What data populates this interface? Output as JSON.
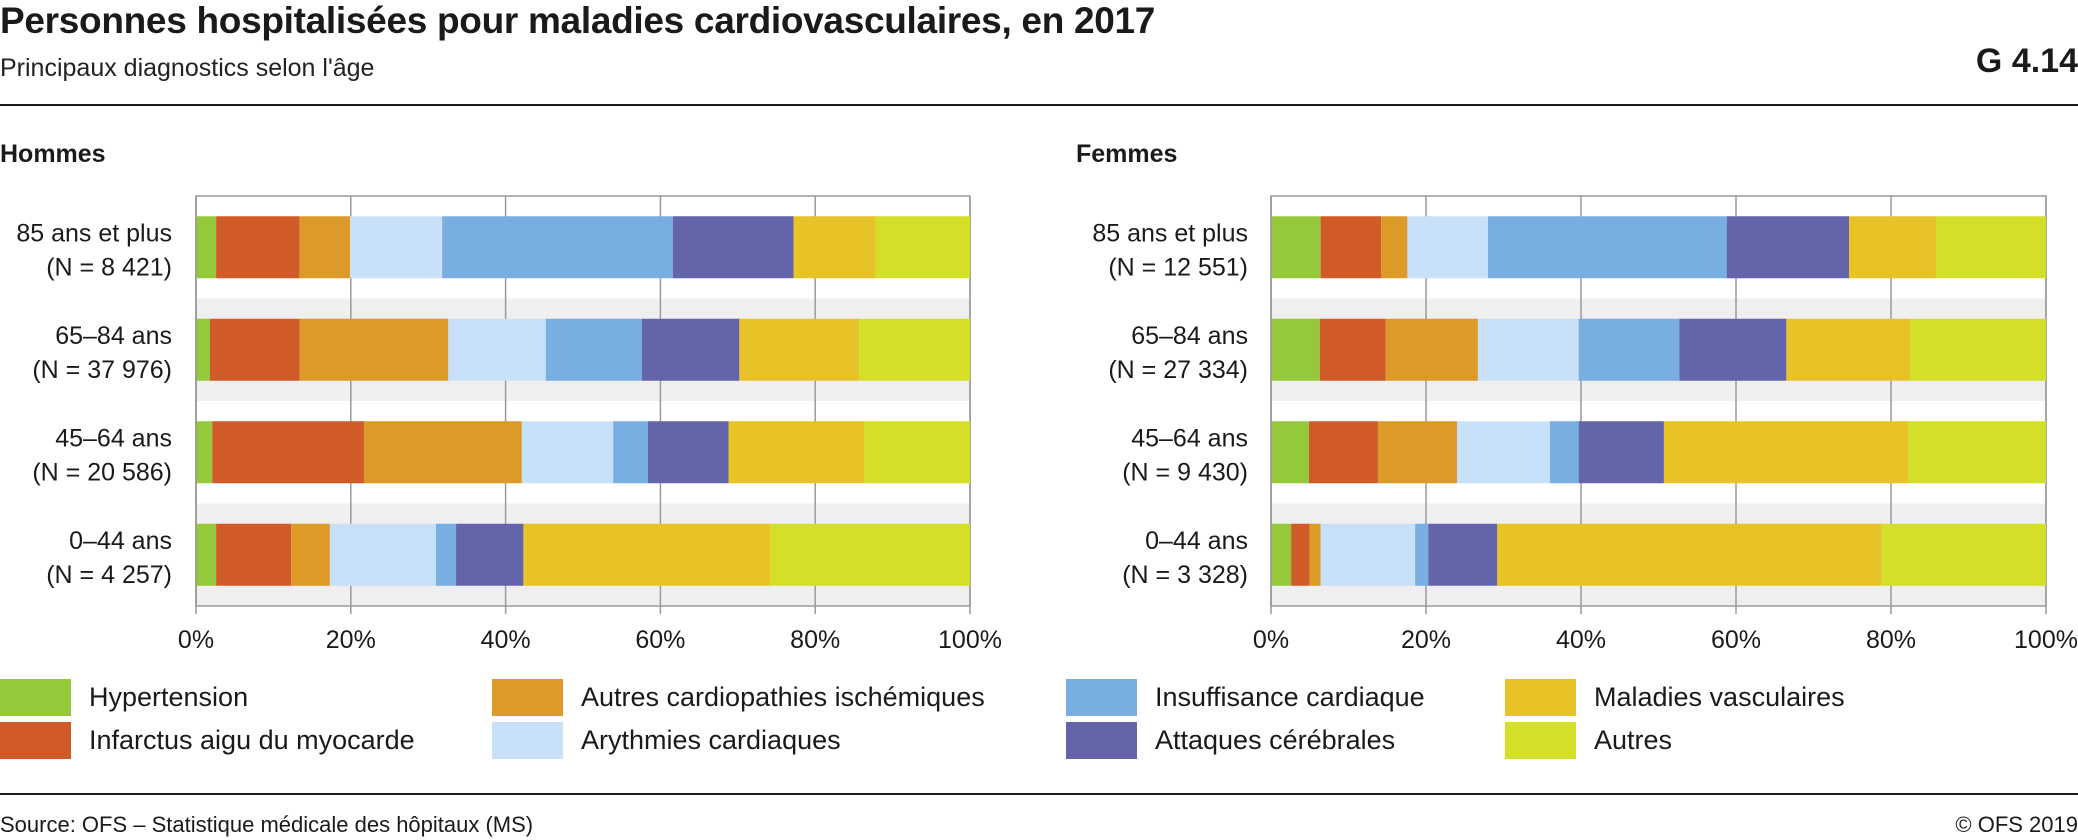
{
  "header": {
    "title": "Personnes hospitalisées pour maladies cardiovasculaires, en 2017",
    "subtitle": "Principaux diagnostics selon l'âge",
    "code": "G 4.14"
  },
  "footer": {
    "source": "Source: OFS – Statistique médicale des hôpitaux (MS)",
    "copyright": "© OFS 2019"
  },
  "legend": [
    {
      "name": "Hypertension",
      "color": "#96c83c"
    },
    {
      "name": "Infarctus aigu du myocarde",
      "color": "#d05a28"
    },
    {
      "name": "Autres cardiopathies ischémiques",
      "color": "#dc9b28"
    },
    {
      "name": "Arythmies cardiaques",
      "color": "#c8e0f8"
    },
    {
      "name": "Insuffisance cardiaque",
      "color": "#78aee2"
    },
    {
      "name": "Attaques cérébrales",
      "color": "#6464aa"
    },
    {
      "name": "Maladies vasculaires",
      "color": "#e8c328"
    },
    {
      "name": "Autres",
      "color": "#d4df28"
    }
  ],
  "chart_data": [
    {
      "type": "bar",
      "orientation": "horizontal",
      "stacked": true,
      "title": "Hommes",
      "categories": [
        [
          "85 ans et plus",
          "(N = 8 421)"
        ],
        [
          "65–84 ans",
          "(N = 37 976)"
        ],
        [
          "45–64 ans",
          "(N = 20 586)"
        ],
        [
          "0–44 ans",
          "(N = 4 257)"
        ]
      ],
      "xlim": [
        0,
        100
      ],
      "xticks": [
        "0%",
        "20%",
        "40%",
        "60%",
        "80%",
        "100%"
      ],
      "series": [
        {
          "name": "Hypertension",
          "values": [
            2.6,
            1.8,
            2.1,
            2.6
          ]
        },
        {
          "name": "Infarctus aigu du myocarde",
          "values": [
            10.8,
            11.6,
            19.6,
            9.7
          ]
        },
        {
          "name": "Autres cardiopathies ischémiques",
          "values": [
            6.5,
            19.2,
            20.4,
            5.0
          ]
        },
        {
          "name": "Arythmies cardiaques",
          "values": [
            11.9,
            12.6,
            11.8,
            13.7
          ]
        },
        {
          "name": "Insuffisance cardiaque",
          "values": [
            29.8,
            12.4,
            4.5,
            2.6
          ]
        },
        {
          "name": "Attaques cérébrales",
          "values": [
            15.6,
            12.6,
            10.4,
            8.7
          ]
        },
        {
          "name": "Maladies vasculaires",
          "values": [
            10.6,
            15.5,
            17.6,
            31.9
          ]
        },
        {
          "name": "Autres",
          "values": [
            12.2,
            14.3,
            13.6,
            25.8
          ]
        }
      ]
    },
    {
      "type": "bar",
      "orientation": "horizontal",
      "stacked": true,
      "title": "Femmes",
      "categories": [
        [
          "85 ans et plus",
          "(N = 12 551)"
        ],
        [
          "65–84 ans",
          "(N = 27 334)"
        ],
        [
          "45–64 ans",
          "(N = 9 430)"
        ],
        [
          "0–44 ans",
          "(N = 3 328)"
        ]
      ],
      "xlim": [
        0,
        100
      ],
      "xticks": [
        "0%",
        "20%",
        "40%",
        "60%",
        "80%",
        "100%"
      ],
      "series": [
        {
          "name": "Hypertension",
          "values": [
            6.4,
            6.3,
            4.9,
            2.6
          ]
        },
        {
          "name": "Infarctus aigu du myocarde",
          "values": [
            7.8,
            8.5,
            8.9,
            2.4
          ]
        },
        {
          "name": "Autres cardiopathies ischémiques",
          "values": [
            3.4,
            11.9,
            10.2,
            1.4
          ]
        },
        {
          "name": "Arythmies cardiaques",
          "values": [
            10.4,
            13.0,
            12.0,
            12.2
          ]
        },
        {
          "name": "Insuffisance cardiaque",
          "values": [
            30.8,
            13.0,
            3.7,
            1.7
          ]
        },
        {
          "name": "Attaques cérébrales",
          "values": [
            15.8,
            13.8,
            11.0,
            8.9
          ]
        },
        {
          "name": "Maladies vasculaires",
          "values": [
            11.2,
            16.0,
            31.6,
            49.6
          ]
        },
        {
          "name": "Autres",
          "values": [
            14.2,
            17.5,
            17.7,
            21.2
          ]
        }
      ]
    }
  ]
}
